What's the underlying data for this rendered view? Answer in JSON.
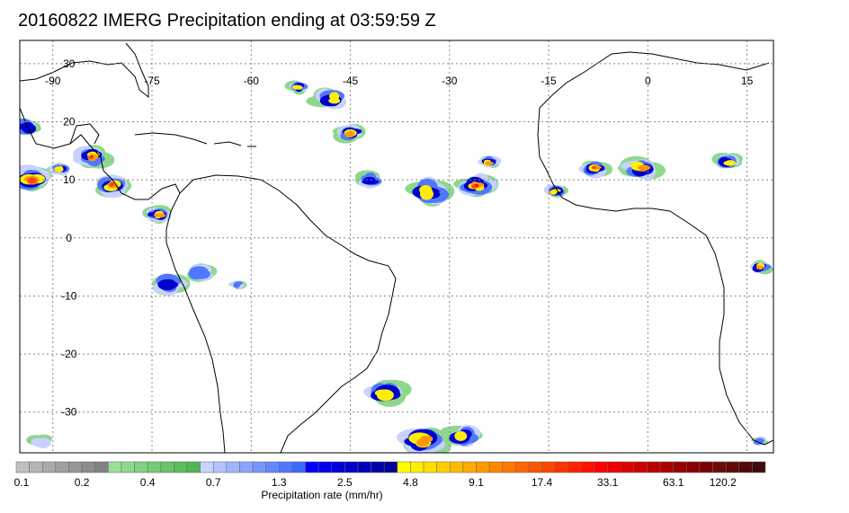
{
  "title": "20160822 IMERG Precipitation ending at 03:59:59 Z",
  "map": {
    "lon_range": [
      -95,
      19
    ],
    "lat_range": [
      -37,
      34
    ],
    "lon_ticks": [
      {
        "value": -90,
        "label": "-90"
      },
      {
        "value": -75,
        "label": "-75"
      },
      {
        "value": -60,
        "label": "-60"
      },
      {
        "value": -45,
        "label": "-45"
      },
      {
        "value": -30,
        "label": "-30"
      },
      {
        "value": -15,
        "label": "-15"
      },
      {
        "value": 0,
        "label": "0"
      },
      {
        "value": 15,
        "label": "15"
      }
    ],
    "lat_ticks": [
      {
        "value": 30,
        "label": "30"
      },
      {
        "value": 20,
        "label": "20"
      },
      {
        "value": 10,
        "label": "10"
      },
      {
        "value": 0,
        "label": "0"
      },
      {
        "value": -10,
        "label": "-10"
      },
      {
        "value": -20,
        "label": "-20"
      },
      {
        "value": -30,
        "label": "-30"
      }
    ],
    "grid": true,
    "coastline_color": "#000000",
    "precip_clusters": [
      {
        "lon": -93,
        "lat": 10,
        "size": 3,
        "max_level": 42
      },
      {
        "lon": -84,
        "lat": 14,
        "size": 2.5,
        "max_level": 44
      },
      {
        "lon": -81,
        "lat": 9,
        "size": 2.5,
        "max_level": 40
      },
      {
        "lon": -89,
        "lat": 12,
        "size": 1.5,
        "max_level": 30
      },
      {
        "lon": -94,
        "lat": 19,
        "size": 2,
        "max_level": 28
      },
      {
        "lon": -74,
        "lat": 4,
        "size": 2,
        "max_level": 38
      },
      {
        "lon": -72,
        "lat": -8,
        "size": 2.5,
        "max_level": 28
      },
      {
        "lon": -68,
        "lat": -6,
        "size": 2,
        "max_level": 22
      },
      {
        "lon": -48,
        "lat": 24,
        "size": 2.5,
        "max_level": 32
      },
      {
        "lon": -45,
        "lat": 18,
        "size": 2,
        "max_level": 36
      },
      {
        "lon": -53,
        "lat": 26,
        "size": 1.5,
        "max_level": 30
      },
      {
        "lon": -42,
        "lat": 10,
        "size": 2,
        "max_level": 26
      },
      {
        "lon": -33,
        "lat": 8,
        "size": 3,
        "max_level": 30
      },
      {
        "lon": -26,
        "lat": 9,
        "size": 2.5,
        "max_level": 44
      },
      {
        "lon": -24,
        "lat": 13,
        "size": 1.5,
        "max_level": 38
      },
      {
        "lon": -14,
        "lat": 8,
        "size": 1.5,
        "max_level": 30
      },
      {
        "lon": -8,
        "lat": 12,
        "size": 2,
        "max_level": 40
      },
      {
        "lon": -1,
        "lat": 12,
        "size": 2.5,
        "max_level": 36
      },
      {
        "lon": 12,
        "lat": 13,
        "size": 2,
        "max_level": 34
      },
      {
        "lon": 17,
        "lat": -5,
        "size": 1.5,
        "max_level": 38
      },
      {
        "lon": -40,
        "lat": -27,
        "size": 3,
        "max_level": 34
      },
      {
        "lon": -34,
        "lat": -35,
        "size": 3.5,
        "max_level": 36
      },
      {
        "lon": -28,
        "lat": -34,
        "size": 2.5,
        "max_level": 30
      },
      {
        "lon": -62,
        "lat": -8,
        "size": 1,
        "max_level": 20
      },
      {
        "lon": -92,
        "lat": -35,
        "size": 1.5,
        "max_level": 14
      },
      {
        "lon": 17,
        "lat": -35,
        "size": 1,
        "max_level": 22
      }
    ]
  },
  "legend": {
    "colors": [
      "#c0c0c0",
      "#b4b4b4",
      "#aaaaaa",
      "#a0a0a0",
      "#969696",
      "#8c8c8c",
      "#828282",
      "#9bdf9b",
      "#8ed88e",
      "#82d182",
      "#76ca76",
      "#69c369",
      "#5dbc5d",
      "#51b551",
      "#c8d2ff",
      "#b4c3ff",
      "#a0b4ff",
      "#8ca5ff",
      "#7896ff",
      "#6487ff",
      "#5078ff",
      "#3c69ff",
      "#0000ff",
      "#0000ee",
      "#0000dd",
      "#0000cc",
      "#0000bb",
      "#0000aa",
      "#000099",
      "#ffff00",
      "#ffee00",
      "#ffdd00",
      "#ffcc00",
      "#ffbb00",
      "#ffaa00",
      "#ff9900",
      "#ff8800",
      "#ff7700",
      "#ff6600",
      "#ff5500",
      "#ff4400",
      "#ff3300",
      "#ff2200",
      "#ff1100",
      "#ff0000",
      "#ee0000",
      "#dd0000",
      "#cc0000",
      "#bb0000",
      "#aa0000",
      "#990000",
      "#880000",
      "#7a0000",
      "#6c0a0a",
      "#5e0a0a",
      "#500a0a",
      "#420a0a"
    ],
    "labels": [
      "0.1",
      "0.2",
      "0.4",
      "0.7",
      "1.3",
      "2.5",
      "4.8",
      "9.1",
      "17.4",
      "33.1",
      "63.1",
      "120.2"
    ],
    "label_every": 5,
    "axis_label": "Precipitation rate (mm/hr)"
  }
}
